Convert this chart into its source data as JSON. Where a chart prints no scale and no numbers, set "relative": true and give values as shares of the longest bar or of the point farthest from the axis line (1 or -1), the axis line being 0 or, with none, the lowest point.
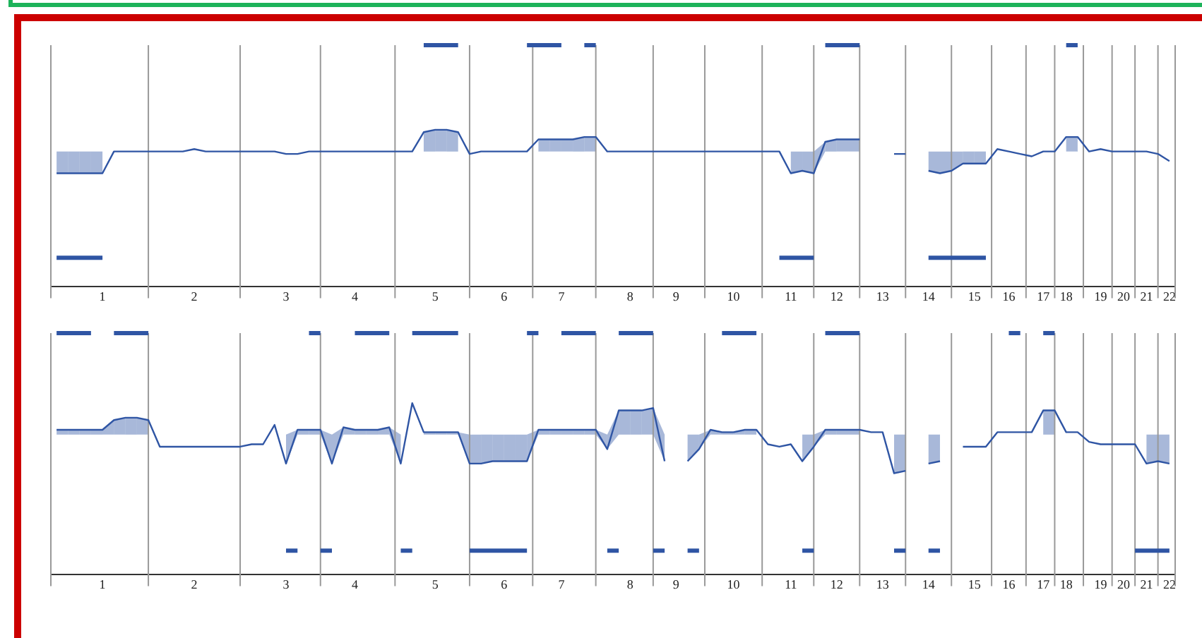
{
  "chart_data": [
    {
      "type": "line",
      "relative": true,
      "grid": false,
      "legend": false,
      "marker": "none",
      "tick_labels": "x",
      "categories": [
        null,
        null,
        null,
        null,
        "1",
        null,
        null,
        null,
        null,
        null,
        null,
        null,
        "2",
        null,
        null,
        null,
        null,
        null,
        null,
        null,
        "3",
        null,
        null,
        null,
        null,
        null,
        "4",
        null,
        null,
        null,
        null,
        null,
        null,
        "5",
        null,
        null,
        null,
        null,
        null,
        "6",
        null,
        null,
        null,
        null,
        "7",
        null,
        null,
        null,
        null,
        null,
        "8",
        null,
        null,
        null,
        "9",
        null,
        null,
        null,
        null,
        "10",
        null,
        null,
        null,
        null,
        "11",
        null,
        null,
        null,
        "12",
        null,
        null,
        null,
        "13",
        null,
        null,
        null,
        "14",
        null,
        null,
        null,
        "15",
        null,
        null,
        "16",
        null,
        null,
        "17",
        null,
        "18",
        null,
        null,
        "19",
        null,
        "20",
        null,
        "21",
        null,
        "22"
      ],
      "series": [
        {
          "type": "line",
          "color": "#2f55a4",
          "values": [
            0.47,
            0.47,
            0.47,
            0.47,
            0.47,
            0.56,
            0.56,
            0.56,
            0.56,
            0.56,
            0.56,
            0.56,
            0.57,
            0.56,
            0.56,
            0.56,
            0.56,
            0.56,
            0.56,
            0.56,
            0.55,
            0.55,
            0.56,
            0.56,
            0.56,
            0.56,
            0.56,
            0.56,
            0.56,
            0.56,
            0.56,
            0.56,
            0.64,
            0.65,
            0.65,
            0.64,
            0.55,
            0.56,
            0.56,
            0.56,
            0.56,
            0.56,
            0.61,
            0.61,
            0.61,
            0.61,
            0.62,
            0.62,
            0.56,
            0.56,
            0.56,
            0.56,
            0.56,
            0.56,
            0.56,
            0.56,
            0.56,
            0.56,
            0.56,
            0.56,
            0.56,
            0.56,
            0.56,
            0.56,
            0.47,
            0.48,
            0.47,
            0.6,
            0.61,
            0.61,
            0.61,
            null,
            null,
            0.55,
            0.55,
            null,
            0.48,
            0.47,
            0.48,
            0.51,
            0.51,
            0.51,
            0.57,
            0.56,
            0.55,
            0.54,
            0.56,
            0.56,
            0.62,
            0.62,
            0.56,
            0.57,
            0.56,
            0.56,
            0.56,
            0.56,
            0.55,
            0.52
          ],
          "lower": [
            0.47,
            0.47,
            0.47,
            0.47,
            0.47,
            null,
            null,
            null,
            null,
            null,
            null,
            null,
            null,
            null,
            null,
            null,
            null,
            null,
            null,
            null,
            null,
            null,
            null,
            null,
            null,
            null,
            null,
            null,
            null,
            null,
            null,
            null,
            0.56,
            0.56,
            0.56,
            0.56,
            null,
            null,
            null,
            null,
            null,
            null,
            0.56,
            0.56,
            0.56,
            0.56,
            0.56,
            0.56,
            null,
            null,
            null,
            null,
            null,
            null,
            null,
            null,
            null,
            null,
            null,
            null,
            null,
            null,
            null,
            null,
            0.47,
            0.48,
            0.47,
            0.56,
            0.56,
            0.56,
            0.56,
            null,
            null,
            null,
            null,
            null,
            0.48,
            0.47,
            0.48,
            0.51,
            0.51,
            0.51,
            null,
            null,
            null,
            null,
            null,
            null,
            0.56,
            0.56,
            null,
            null,
            null,
            null,
            null,
            null,
            null,
            null
          ],
          "upper": [
            0.56,
            0.56,
            0.56,
            0.56,
            0.56,
            null,
            null,
            null,
            null,
            null,
            null,
            null,
            null,
            null,
            null,
            null,
            null,
            null,
            null,
            null,
            null,
            null,
            null,
            null,
            null,
            null,
            null,
            null,
            null,
            null,
            null,
            null,
            0.64,
            0.65,
            0.65,
            0.64,
            null,
            null,
            null,
            null,
            null,
            null,
            0.61,
            0.61,
            0.61,
            0.61,
            0.62,
            0.62,
            null,
            null,
            null,
            null,
            null,
            null,
            null,
            null,
            null,
            null,
            null,
            null,
            null,
            null,
            null,
            null,
            0.56,
            0.56,
            0.56,
            0.6,
            0.61,
            0.61,
            0.61,
            null,
            null,
            null,
            null,
            null,
            0.56,
            0.56,
            0.56,
            0.56,
            0.56,
            0.56,
            null,
            null,
            null,
            null,
            null,
            null,
            0.62,
            0.62,
            null,
            null,
            null,
            null,
            null,
            null,
            null,
            null
          ]
        },
        {
          "type": "line",
          "color": "#2f55a4",
          "values": [
            null,
            null,
            null,
            null,
            null,
            null,
            null,
            null,
            null,
            null,
            null,
            null,
            null,
            null,
            null,
            null,
            null,
            null,
            null,
            null,
            null,
            null,
            null,
            null,
            null,
            null,
            null,
            null,
            null,
            null,
            null,
            null,
            1,
            1,
            1,
            1,
            null,
            null,
            null,
            null,
            null,
            1,
            1,
            1,
            1,
            null,
            1,
            1,
            null,
            null,
            null,
            null,
            null,
            null,
            null,
            null,
            null,
            null,
            null,
            null,
            null,
            null,
            null,
            null,
            null,
            null,
            null,
            1,
            1,
            1,
            1,
            null,
            null,
            null,
            null,
            null,
            null,
            null,
            null,
            null,
            null,
            null,
            null,
            null,
            null,
            null,
            null,
            null,
            1,
            1,
            null,
            null,
            null,
            null,
            null,
            null,
            null,
            null
          ]
        },
        {
          "type": "line",
          "color": "#2f55a4",
          "values": [
            0.12,
            0.12,
            0.12,
            0.12,
            0.12,
            null,
            null,
            null,
            null,
            null,
            null,
            null,
            null,
            null,
            null,
            null,
            null,
            null,
            null,
            null,
            null,
            null,
            null,
            null,
            null,
            null,
            null,
            null,
            null,
            null,
            null,
            null,
            null,
            null,
            null,
            null,
            null,
            null,
            null,
            null,
            null,
            null,
            null,
            null,
            null,
            null,
            null,
            null,
            null,
            null,
            null,
            null,
            null,
            null,
            null,
            null,
            null,
            null,
            null,
            null,
            null,
            null,
            null,
            0.12,
            0.12,
            0.12,
            0.12,
            null,
            null,
            null,
            null,
            null,
            null,
            null,
            null,
            null,
            0.12,
            0.12,
            0.12,
            0.12,
            0.12,
            0.12,
            null,
            null,
            null,
            null,
            null,
            null,
            null,
            null,
            null,
            null,
            null,
            null,
            null,
            null,
            null,
            null
          ]
        }
      ]
    },
    {
      "type": "line",
      "relative": true,
      "grid": false,
      "legend": false,
      "marker": "none",
      "tick_labels": "x",
      "categories": [
        null,
        null,
        null,
        null,
        "1",
        null,
        null,
        null,
        null,
        null,
        null,
        null,
        "2",
        null,
        null,
        null,
        null,
        null,
        null,
        null,
        "3",
        null,
        null,
        null,
        null,
        null,
        "4",
        null,
        null,
        null,
        null,
        null,
        null,
        "5",
        null,
        null,
        null,
        null,
        null,
        "6",
        null,
        null,
        null,
        null,
        "7",
        null,
        null,
        null,
        null,
        null,
        "8",
        null,
        null,
        null,
        "9",
        null,
        null,
        null,
        null,
        "10",
        null,
        null,
        null,
        null,
        "11",
        null,
        null,
        null,
        "12",
        null,
        null,
        null,
        "13",
        null,
        null,
        null,
        "14",
        null,
        null,
        null,
        "15",
        null,
        null,
        "16",
        null,
        null,
        "17",
        null,
        "18",
        null,
        null,
        "19",
        null,
        "20",
        null,
        "21",
        null,
        "22"
      ],
      "series": [
        {
          "type": "line",
          "color": "#2f55a4",
          "values": [
            0.6,
            0.6,
            0.6,
            0.6,
            0.6,
            0.64,
            0.65,
            0.65,
            0.64,
            0.53,
            0.53,
            0.53,
            0.53,
            0.53,
            0.53,
            0.53,
            0.53,
            0.54,
            0.54,
            0.62,
            0.46,
            0.6,
            0.6,
            0.6,
            0.46,
            0.61,
            0.6,
            0.6,
            0.6,
            0.61,
            0.46,
            0.71,
            0.59,
            0.59,
            0.59,
            0.59,
            0.46,
            0.46,
            0.47,
            0.47,
            0.47,
            0.47,
            0.6,
            0.6,
            0.6,
            0.6,
            0.6,
            0.6,
            0.52,
            0.68,
            0.68,
            0.68,
            0.69,
            0.47,
            null,
            0.47,
            0.52,
            0.6,
            0.59,
            0.59,
            0.6,
            0.6,
            0.54,
            0.53,
            0.54,
            0.47,
            0.53,
            0.6,
            0.6,
            0.6,
            0.6,
            0.59,
            0.59,
            0.42,
            0.43,
            null,
            0.46,
            0.47,
            null,
            0.53,
            0.53,
            0.53,
            0.59,
            0.59,
            0.59,
            0.59,
            0.68,
            0.68,
            0.59,
            0.59,
            0.55,
            0.54,
            0.54,
            0.54,
            0.54,
            0.46,
            0.47,
            0.46
          ],
          "lower": [
            0.58,
            0.58,
            0.58,
            0.58,
            0.58,
            0.58,
            0.58,
            0.58,
            0.58,
            null,
            null,
            null,
            null,
            null,
            null,
            null,
            null,
            null,
            null,
            null,
            0.46,
            0.58,
            0.58,
            0.58,
            0.46,
            0.58,
            0.58,
            0.58,
            0.58,
            0.58,
            0.46,
            null,
            0.58,
            0.58,
            0.58,
            0.58,
            0.46,
            0.46,
            0.47,
            0.47,
            0.47,
            0.47,
            0.58,
            0.58,
            0.58,
            0.58,
            0.58,
            0.58,
            0.52,
            0.58,
            0.58,
            0.58,
            0.58,
            0.47,
            null,
            0.47,
            0.52,
            0.58,
            0.58,
            0.58,
            0.58,
            0.58,
            null,
            null,
            null,
            0.47,
            0.53,
            0.58,
            0.58,
            0.58,
            0.58,
            null,
            null,
            0.42,
            0.43,
            null,
            0.46,
            0.47,
            null,
            null,
            null,
            null,
            null,
            null,
            null,
            null,
            0.58,
            0.58,
            null,
            null,
            null,
            null,
            null,
            null,
            null,
            0.46,
            0.47,
            0.46
          ],
          "upper": [
            0.6,
            0.6,
            0.6,
            0.6,
            0.6,
            0.64,
            0.65,
            0.65,
            0.64,
            null,
            null,
            null,
            null,
            null,
            null,
            null,
            null,
            null,
            null,
            null,
            0.58,
            0.6,
            0.6,
            0.6,
            0.58,
            0.61,
            0.6,
            0.6,
            0.6,
            0.61,
            0.58,
            null,
            0.59,
            0.59,
            0.59,
            0.59,
            0.58,
            0.58,
            0.58,
            0.58,
            0.58,
            0.58,
            0.6,
            0.6,
            0.6,
            0.6,
            0.6,
            0.6,
            0.58,
            0.68,
            0.68,
            0.68,
            0.69,
            0.58,
            null,
            0.58,
            0.58,
            0.6,
            0.59,
            0.59,
            0.6,
            0.6,
            null,
            null,
            null,
            0.58,
            0.58,
            0.6,
            0.6,
            0.6,
            0.6,
            null,
            null,
            0.58,
            0.58,
            null,
            0.58,
            0.58,
            null,
            null,
            null,
            null,
            null,
            null,
            null,
            null,
            0.68,
            0.68,
            null,
            null,
            null,
            null,
            null,
            null,
            null,
            0.58,
            0.58,
            0.58
          ]
        },
        {
          "type": "line",
          "color": "#2f55a4",
          "values": [
            1,
            1,
            1,
            1,
            null,
            1,
            1,
            1,
            1,
            null,
            null,
            null,
            null,
            null,
            null,
            null,
            null,
            null,
            null,
            null,
            null,
            null,
            1,
            1,
            null,
            null,
            1,
            1,
            1,
            1,
            null,
            1,
            1,
            1,
            1,
            1,
            null,
            null,
            null,
            null,
            null,
            1,
            1,
            null,
            1,
            1,
            1,
            1,
            null,
            1,
            1,
            1,
            1,
            null,
            null,
            null,
            null,
            null,
            1,
            1,
            1,
            1,
            null,
            null,
            null,
            null,
            null,
            1,
            1,
            1,
            1,
            null,
            null,
            null,
            null,
            null,
            null,
            null,
            null,
            null,
            null,
            null,
            null,
            1,
            1,
            null,
            1,
            1,
            null,
            null,
            null,
            null,
            null,
            null,
            null,
            null,
            null,
            null
          ]
        },
        {
          "type": "line",
          "color": "#2f55a4",
          "values": [
            null,
            null,
            null,
            null,
            null,
            null,
            null,
            null,
            null,
            null,
            null,
            null,
            null,
            null,
            null,
            null,
            null,
            null,
            null,
            null,
            0.1,
            0.1,
            null,
            0.1,
            0.1,
            null,
            null,
            null,
            null,
            null,
            0.1,
            0.1,
            null,
            null,
            null,
            null,
            0.1,
            0.1,
            0.1,
            0.1,
            0.1,
            0.1,
            null,
            null,
            null,
            null,
            null,
            null,
            0.1,
            0.1,
            null,
            null,
            0.1,
            0.1,
            null,
            0.1,
            0.1,
            null,
            null,
            null,
            null,
            null,
            null,
            null,
            null,
            0.1,
            0.1,
            null,
            null,
            null,
            null,
            null,
            null,
            0.1,
            0.1,
            null,
            0.1,
            0.1,
            null,
            null,
            null,
            null,
            null,
            null,
            null,
            null,
            null,
            null,
            null,
            null,
            null,
            null,
            null,
            null,
            0.1,
            0.1,
            0.1,
            0.1
          ]
        }
      ]
    }
  ]
}
